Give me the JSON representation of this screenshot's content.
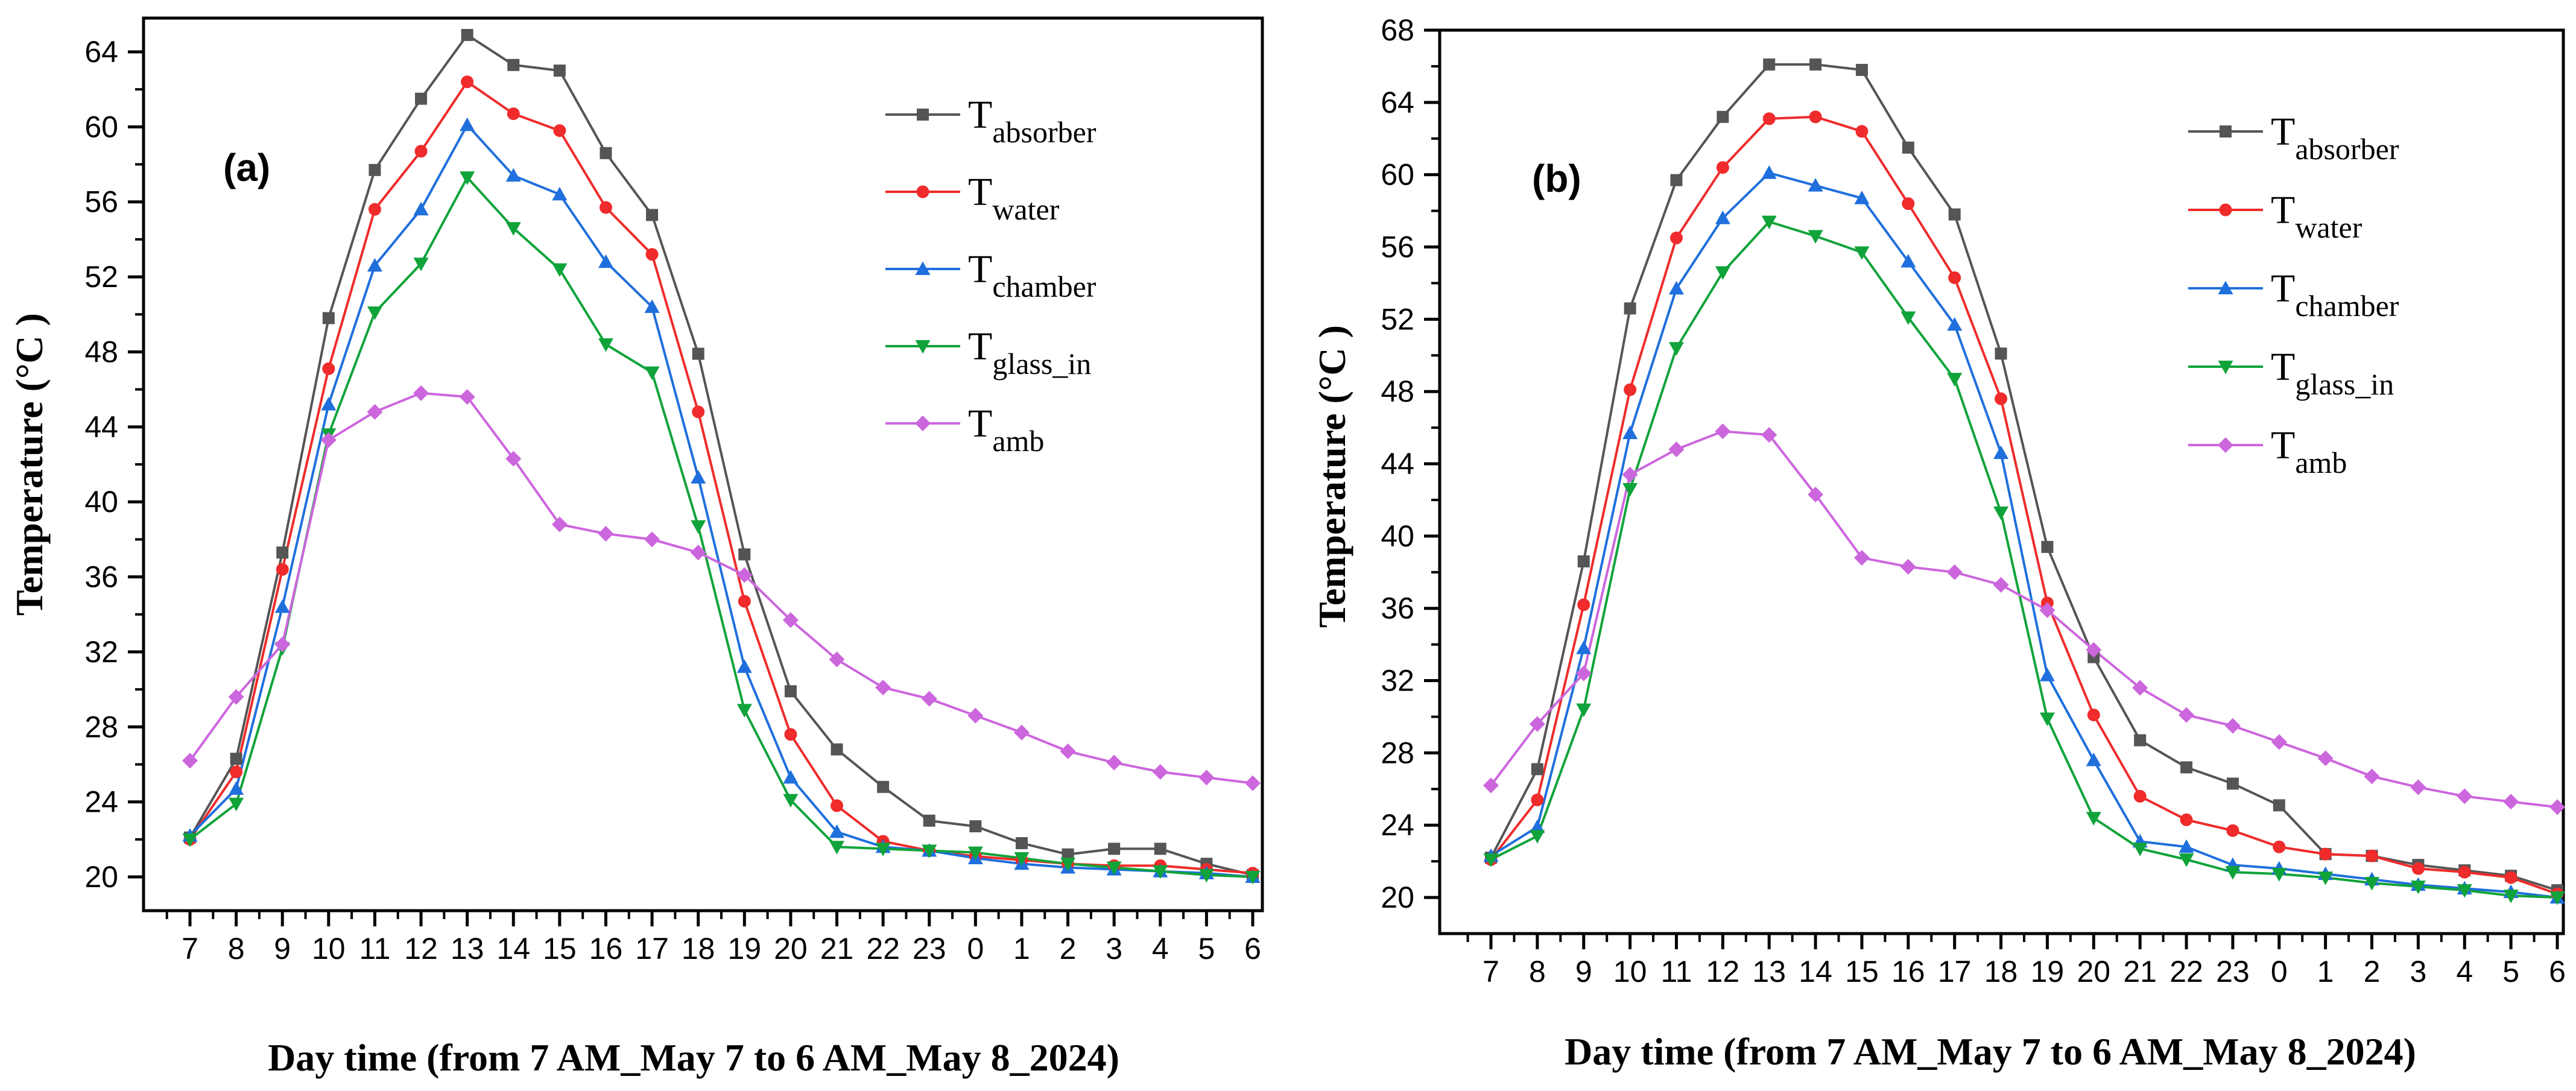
{
  "chart_data": [
    {
      "type": "line",
      "panel_label": "(a)",
      "xlabel": "Day time (from 7 AM_May 7 to 6 AM_May 8_2024)",
      "ylabel": "Temperature (°C )",
      "categories": [
        "7",
        "8",
        "9",
        "10",
        "11",
        "12",
        "13",
        "14",
        "15",
        "16",
        "17",
        "18",
        "19",
        "20",
        "21",
        "22",
        "23",
        "0",
        "1",
        "2",
        "3",
        "4",
        "5",
        "6"
      ],
      "ylim": [
        18.2,
        65.8
      ],
      "yticks": [
        "20",
        "24",
        "28",
        "32",
        "36",
        "40",
        "44",
        "48",
        "52",
        "56",
        "60",
        "64"
      ],
      "legend_position": "top-right",
      "series": [
        {
          "name": "T",
          "sub": "absorber",
          "color": "#555555",
          "marker": "square",
          "values": [
            22.1,
            26.3,
            37.3,
            49.8,
            57.7,
            61.5,
            64.9,
            63.3,
            63.0,
            58.6,
            55.3,
            47.9,
            37.2,
            29.9,
            26.8,
            24.8,
            23.0,
            22.7,
            21.8,
            21.2,
            21.5,
            21.5,
            20.7,
            20.1
          ]
        },
        {
          "name": "T",
          "sub": "water",
          "color": "#ef2b2b",
          "marker": "circle",
          "values": [
            22.0,
            25.6,
            36.4,
            47.1,
            55.6,
            58.7,
            62.4,
            60.7,
            59.8,
            55.7,
            53.2,
            44.8,
            34.7,
            27.6,
            23.8,
            21.9,
            21.4,
            21.1,
            20.9,
            20.7,
            20.6,
            20.6,
            20.4,
            20.2
          ]
        },
        {
          "name": "T",
          "sub": "chamber",
          "color": "#1f6fdc",
          "marker": "triangle-up",
          "values": [
            22.2,
            24.7,
            34.4,
            45.2,
            52.6,
            55.6,
            60.1,
            57.4,
            56.4,
            52.8,
            50.4,
            41.3,
            31.2,
            25.3,
            22.4,
            21.6,
            21.4,
            21.0,
            20.7,
            20.5,
            20.4,
            20.3,
            20.2,
            20.0
          ]
        },
        {
          "name": "T",
          "sub": "glass_in",
          "color": "#10a33a",
          "marker": "triangle-down",
          "values": [
            22.0,
            23.9,
            32.2,
            43.6,
            50.1,
            52.7,
            57.3,
            54.6,
            52.4,
            48.4,
            46.9,
            38.7,
            28.9,
            24.1,
            21.6,
            21.5,
            21.4,
            21.3,
            21.0,
            20.7,
            20.5,
            20.3,
            20.1,
            20.0
          ]
        },
        {
          "name": "T",
          "sub": "amb",
          "color": "#cc66dd",
          "marker": "diamond",
          "values": [
            26.2,
            29.6,
            32.4,
            43.3,
            44.8,
            45.8,
            45.6,
            42.3,
            38.8,
            38.3,
            38.0,
            37.3,
            36.1,
            33.7,
            31.6,
            30.1,
            29.5,
            28.6,
            27.7,
            26.7,
            26.1,
            25.6,
            25.3,
            25.0
          ]
        }
      ]
    },
    {
      "type": "line",
      "panel_label": "(b)",
      "xlabel": "Day time (from 7 AM_May 7 to 6 AM_May 8_2024)",
      "ylabel": "Temperature (°C )",
      "categories": [
        "7",
        "8",
        "9",
        "10",
        "11",
        "12",
        "13",
        "14",
        "15",
        "16",
        "17",
        "18",
        "19",
        "20",
        "21",
        "22",
        "23",
        "0",
        "1",
        "2",
        "3",
        "4",
        "5",
        "6"
      ],
      "ylim": [
        18.0,
        68.0
      ],
      "yticks": [
        "20",
        "24",
        "28",
        "32",
        "36",
        "40",
        "44",
        "48",
        "52",
        "56",
        "60",
        "64",
        "68"
      ],
      "legend_position": "top-right",
      "series": [
        {
          "name": "T",
          "sub": "absorber",
          "color": "#555555",
          "marker": "square",
          "values": [
            22.2,
            27.1,
            38.6,
            52.6,
            59.7,
            63.2,
            66.1,
            66.1,
            65.8,
            61.5,
            57.8,
            50.1,
            39.4,
            33.3,
            28.7,
            27.2,
            26.3,
            25.1,
            22.4,
            22.3,
            21.8,
            21.5,
            21.2,
            20.4
          ]
        },
        {
          "name": "T",
          "sub": "water",
          "color": "#ef2b2b",
          "marker": "circle",
          "values": [
            22.1,
            25.4,
            36.2,
            48.1,
            56.5,
            60.4,
            63.1,
            63.2,
            62.4,
            58.4,
            54.3,
            47.6,
            36.3,
            30.1,
            25.6,
            24.3,
            23.7,
            22.8,
            22.4,
            22.3,
            21.6,
            21.4,
            21.1,
            20.2
          ]
        },
        {
          "name": "T",
          "sub": "chamber",
          "color": "#1f6fdc",
          "marker": "triangle-up",
          "values": [
            22.3,
            23.9,
            33.8,
            45.7,
            53.7,
            57.6,
            60.1,
            59.4,
            58.7,
            55.2,
            51.7,
            44.6,
            32.3,
            27.6,
            23.1,
            22.8,
            21.8,
            21.6,
            21.3,
            21.0,
            20.7,
            20.5,
            20.3,
            20.0
          ]
        },
        {
          "name": "T",
          "sub": "glass_in",
          "color": "#10a33a",
          "marker": "triangle-down",
          "values": [
            22.1,
            23.4,
            30.4,
            42.6,
            50.4,
            54.6,
            57.4,
            56.6,
            55.7,
            52.1,
            48.7,
            41.3,
            29.9,
            24.4,
            22.7,
            22.1,
            21.4,
            21.3,
            21.1,
            20.8,
            20.6,
            20.4,
            20.1,
            20.0
          ]
        },
        {
          "name": "T",
          "sub": "amb",
          "color": "#cc66dd",
          "marker": "diamond",
          "values": [
            26.2,
            29.6,
            32.4,
            43.4,
            44.8,
            45.8,
            45.6,
            42.3,
            38.8,
            38.3,
            38.0,
            37.3,
            35.9,
            33.7,
            31.6,
            30.1,
            29.5,
            28.6,
            27.7,
            26.7,
            26.1,
            25.6,
            25.3,
            25.0
          ]
        }
      ]
    }
  ]
}
